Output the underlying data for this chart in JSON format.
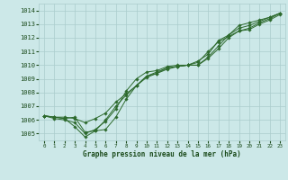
{
  "xlabel": "Graphe pression niveau de la mer (hPa)",
  "bg_color": "#cce8e8",
  "grid_color": "#aacccc",
  "line_color": "#2d6a2d",
  "text_color": "#1a4a1a",
  "ylim": [
    1004.5,
    1014.5
  ],
  "xlim": [
    -0.5,
    23.5
  ],
  "yticks": [
    1005,
    1006,
    1007,
    1008,
    1009,
    1010,
    1011,
    1012,
    1013,
    1014
  ],
  "xticks": [
    0,
    1,
    2,
    3,
    4,
    5,
    6,
    7,
    8,
    9,
    10,
    11,
    12,
    13,
    14,
    15,
    16,
    17,
    18,
    19,
    20,
    21,
    22,
    23
  ],
  "line1": [
    1006.3,
    1006.2,
    1006.1,
    1006.2,
    1005.1,
    1005.2,
    1006.0,
    1007.0,
    1007.8,
    1008.5,
    1009.1,
    1009.4,
    1009.7,
    1009.9,
    1010.0,
    1010.0,
    1010.6,
    1011.4,
    1012.2,
    1012.7,
    1012.9,
    1013.2,
    1013.5,
    1013.8
  ],
  "line2": [
    1006.3,
    1006.2,
    1006.1,
    1005.5,
    1004.75,
    1005.2,
    1005.3,
    1006.2,
    1007.5,
    1008.5,
    1009.2,
    1009.5,
    1009.8,
    1009.9,
    1010.0,
    1010.0,
    1010.5,
    1011.2,
    1012.0,
    1012.5,
    1012.7,
    1013.1,
    1013.4,
    1013.8
  ],
  "line3": [
    1006.3,
    1006.1,
    1006.0,
    1005.8,
    1005.0,
    1005.3,
    1005.9,
    1006.8,
    1008.1,
    1009.0,
    1009.5,
    1009.6,
    1009.9,
    1010.0,
    1010.0,
    1010.2,
    1011.0,
    1011.7,
    1012.1,
    1012.5,
    1012.6,
    1013.0,
    1013.3,
    1013.7
  ],
  "line4": [
    1006.3,
    1006.2,
    1006.2,
    1006.1,
    1005.8,
    1006.1,
    1006.5,
    1007.3,
    1007.9,
    1008.5,
    1009.2,
    1009.4,
    1009.8,
    1009.9,
    1010.0,
    1010.3,
    1010.8,
    1011.8,
    1012.2,
    1012.9,
    1013.1,
    1013.3,
    1013.5,
    1013.8
  ]
}
